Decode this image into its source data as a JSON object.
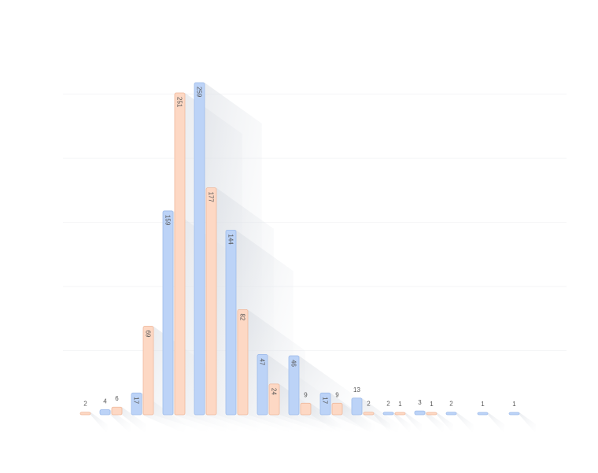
{
  "chart_data": {
    "type": "bar",
    "title": "",
    "xlabel": "",
    "ylabel": "",
    "ylim": [
      0,
      300
    ],
    "grid": true,
    "legend": "none",
    "categories": [
      "",
      "",
      "",
      "",
      "",
      "",
      "",
      "",
      "",
      "",
      "",
      "",
      "",
      "",
      "",
      ""
    ],
    "series": [
      {
        "color": "#bcd3f7",
        "stroke": "#9fbcea",
        "values": [
          null,
          4,
          17,
          159,
          259,
          144,
          47,
          46,
          17,
          13,
          2,
          3,
          2,
          1,
          1,
          null
        ]
      },
      {
        "color": "#fdd8c4",
        "stroke": "#efb89b",
        "values": [
          2,
          6,
          69,
          251,
          177,
          82,
          24,
          9,
          9,
          2,
          1,
          1,
          null,
          null,
          null,
          null
        ]
      }
    ]
  }
}
